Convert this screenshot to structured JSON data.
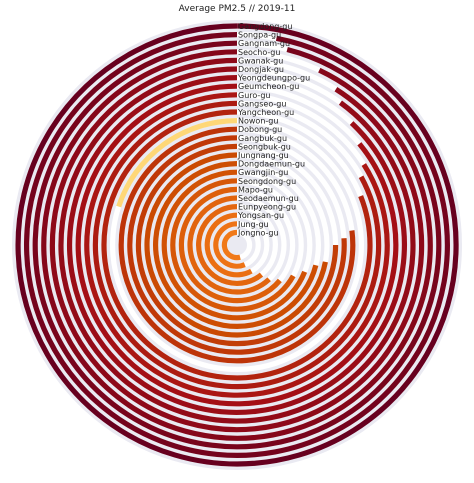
{
  "chart_data": {
    "type": "radial-bar",
    "title": "Average PM2.5 // 2019-11",
    "value_range": [
      0,
      100
    ],
    "colormap": [
      "#fff7bc",
      "#fee391",
      "#fec44f",
      "#fe9929",
      "#ec7014",
      "#cc4c02",
      "#a50f15",
      "#67001f"
    ],
    "background_color": "#eaeaf2",
    "series": [
      {
        "name": "Gangdong-gu",
        "value": 100
      },
      {
        "name": "Songpa-gu",
        "value": 97
      },
      {
        "name": "Gangnam-gu",
        "value": 96
      },
      {
        "name": "Seocho-gu",
        "value": 93
      },
      {
        "name": "Gwanak-gu",
        "value": 91
      },
      {
        "name": "Dongjak-gu",
        "value": 90
      },
      {
        "name": "Yeongdeungpo-gu",
        "value": 88
      },
      {
        "name": "Geumcheon-gu",
        "value": 86
      },
      {
        "name": "Guro-gu",
        "value": 84
      },
      {
        "name": "Gangseo-gu",
        "value": 83
      },
      {
        "name": "Yangcheon-gu",
        "value": 81
      },
      {
        "name": "Nowon-gu",
        "value": 20
      },
      {
        "name": "Dobong-gu",
        "value": 77
      },
      {
        "name": "Gangbuk-gu",
        "value": 76
      },
      {
        "name": "Seongbuk-gu",
        "value": 75
      },
      {
        "name": "Jungnang-gu",
        "value": 72
      },
      {
        "name": "Dongdaemun-gu",
        "value": 71
      },
      {
        "name": "Gwangjin-gu",
        "value": 69
      },
      {
        "name": "Seongdong-gu",
        "value": 67
      },
      {
        "name": "Mapo-gu",
        "value": 64
      },
      {
        "name": "Seodaemun-gu",
        "value": 62
      },
      {
        "name": "Eunpyeong-gu",
        "value": 61
      },
      {
        "name": "Yongsan-gu",
        "value": 58
      },
      {
        "name": "Jung-gu",
        "value": 56
      },
      {
        "name": "Jongno-gu",
        "value": 54
      }
    ]
  }
}
